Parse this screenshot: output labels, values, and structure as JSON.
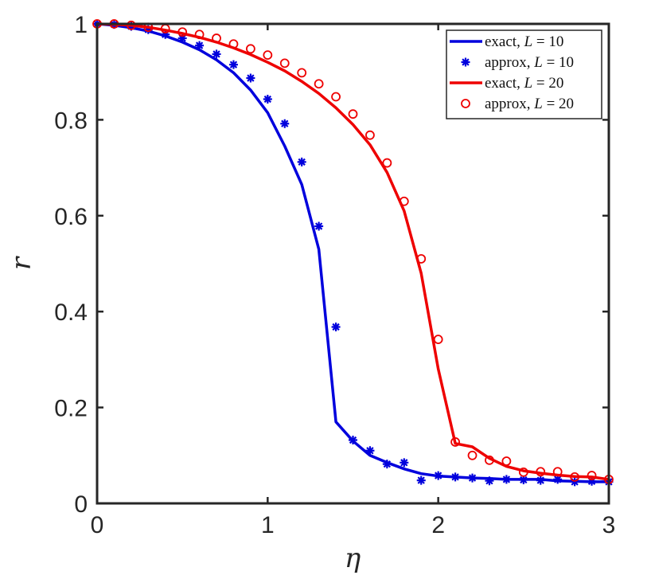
{
  "chart_data": {
    "type": "line",
    "xlabel": "η",
    "ylabel": "r",
    "xlim": [
      0,
      3
    ],
    "ylim": [
      0,
      1
    ],
    "xticks": [
      0,
      1,
      2,
      3
    ],
    "xtick_labels": [
      "0",
      "1",
      "2",
      "3"
    ],
    "yticks": [
      0,
      0.2,
      0.4,
      0.6,
      0.8,
      1
    ],
    "ytick_labels": [
      "0",
      "0.2",
      "0.4",
      "0.6",
      "0.8",
      "1"
    ],
    "grid": false,
    "legend_position": "top-right",
    "series": [
      {
        "name": "exact, L = 10",
        "name_parts": {
          "word": "exact,",
          "var": "L",
          "eq": "= 10"
        },
        "style": "line",
        "color": "#0000dd",
        "x": [
          0,
          0.1,
          0.2,
          0.3,
          0.4,
          0.5,
          0.6,
          0.7,
          0.8,
          0.9,
          1.0,
          1.1,
          1.2,
          1.3,
          1.4,
          1.5,
          1.6,
          1.7,
          1.8,
          1.9,
          2.0,
          2.1,
          2.2,
          2.3,
          2.4,
          2.5,
          2.6,
          2.7,
          2.8,
          2.9,
          3.0
        ],
        "y": [
          1.0,
          0.997,
          0.992,
          0.985,
          0.975,
          0.962,
          0.946,
          0.925,
          0.898,
          0.862,
          0.815,
          0.745,
          0.665,
          0.53,
          0.17,
          0.13,
          0.1,
          0.085,
          0.072,
          0.062,
          0.057,
          0.055,
          0.053,
          0.052,
          0.05,
          0.05,
          0.05,
          0.047,
          0.046,
          0.045,
          0.045
        ]
      },
      {
        "name": "approx, L = 10",
        "name_parts": {
          "word": "approx,",
          "var": "L",
          "eq": "= 10"
        },
        "style": "marker-star",
        "color": "#0000dd",
        "x": [
          0,
          0.1,
          0.2,
          0.3,
          0.4,
          0.5,
          0.6,
          0.7,
          0.8,
          0.9,
          1.0,
          1.1,
          1.2,
          1.3,
          1.4,
          1.5,
          1.6,
          1.7,
          1.8,
          1.9,
          2.0,
          2.1,
          2.2,
          2.3,
          2.4,
          2.5,
          2.6,
          2.7,
          2.8,
          2.9,
          3.0
        ],
        "y": [
          1.0,
          0.999,
          0.995,
          0.988,
          0.978,
          0.97,
          0.955,
          0.937,
          0.915,
          0.887,
          0.843,
          0.792,
          0.712,
          0.578,
          0.368,
          0.132,
          0.11,
          0.082,
          0.085,
          0.048,
          0.058,
          0.055,
          0.053,
          0.047,
          0.05,
          0.049,
          0.048,
          0.05,
          0.045,
          0.046,
          0.045
        ]
      },
      {
        "name": "exact, L = 20",
        "name_parts": {
          "word": "exact,",
          "var": "L",
          "eq": "= 20"
        },
        "style": "line",
        "color": "#ee0000",
        "x": [
          0,
          0.1,
          0.2,
          0.3,
          0.4,
          0.5,
          0.6,
          0.7,
          0.8,
          0.9,
          1.0,
          1.1,
          1.2,
          1.3,
          1.4,
          1.5,
          1.6,
          1.7,
          1.8,
          1.9,
          2.0,
          2.1,
          2.2,
          2.3,
          2.4,
          2.5,
          2.6,
          2.7,
          2.8,
          2.9,
          3.0
        ],
        "y": [
          1.0,
          0.999,
          0.997,
          0.993,
          0.987,
          0.98,
          0.972,
          0.962,
          0.95,
          0.936,
          0.92,
          0.902,
          0.88,
          0.855,
          0.825,
          0.79,
          0.748,
          0.69,
          0.61,
          0.48,
          0.28,
          0.125,
          0.118,
          0.094,
          0.077,
          0.068,
          0.063,
          0.059,
          0.056,
          0.055,
          0.05
        ]
      },
      {
        "name": "approx, L = 20",
        "name_parts": {
          "word": "approx,",
          "var": "L",
          "eq": "= 20"
        },
        "style": "marker-circle",
        "color": "#ee0000",
        "x": [
          0,
          0.1,
          0.2,
          0.3,
          0.4,
          0.5,
          0.6,
          0.7,
          0.8,
          0.9,
          1.0,
          1.1,
          1.2,
          1.3,
          1.4,
          1.5,
          1.6,
          1.7,
          1.8,
          1.9,
          2.0,
          2.1,
          2.2,
          2.3,
          2.4,
          2.5,
          2.6,
          2.7,
          2.8,
          2.9,
          3.0
        ],
        "y": [
          1.0,
          1.0,
          0.997,
          0.993,
          0.99,
          0.983,
          0.978,
          0.97,
          0.958,
          0.948,
          0.935,
          0.918,
          0.898,
          0.875,
          0.848,
          0.812,
          0.768,
          0.71,
          0.63,
          0.51,
          0.342,
          0.128,
          0.1,
          0.09,
          0.088,
          0.065,
          0.066,
          0.066,
          0.055,
          0.058,
          0.05
        ]
      }
    ]
  }
}
